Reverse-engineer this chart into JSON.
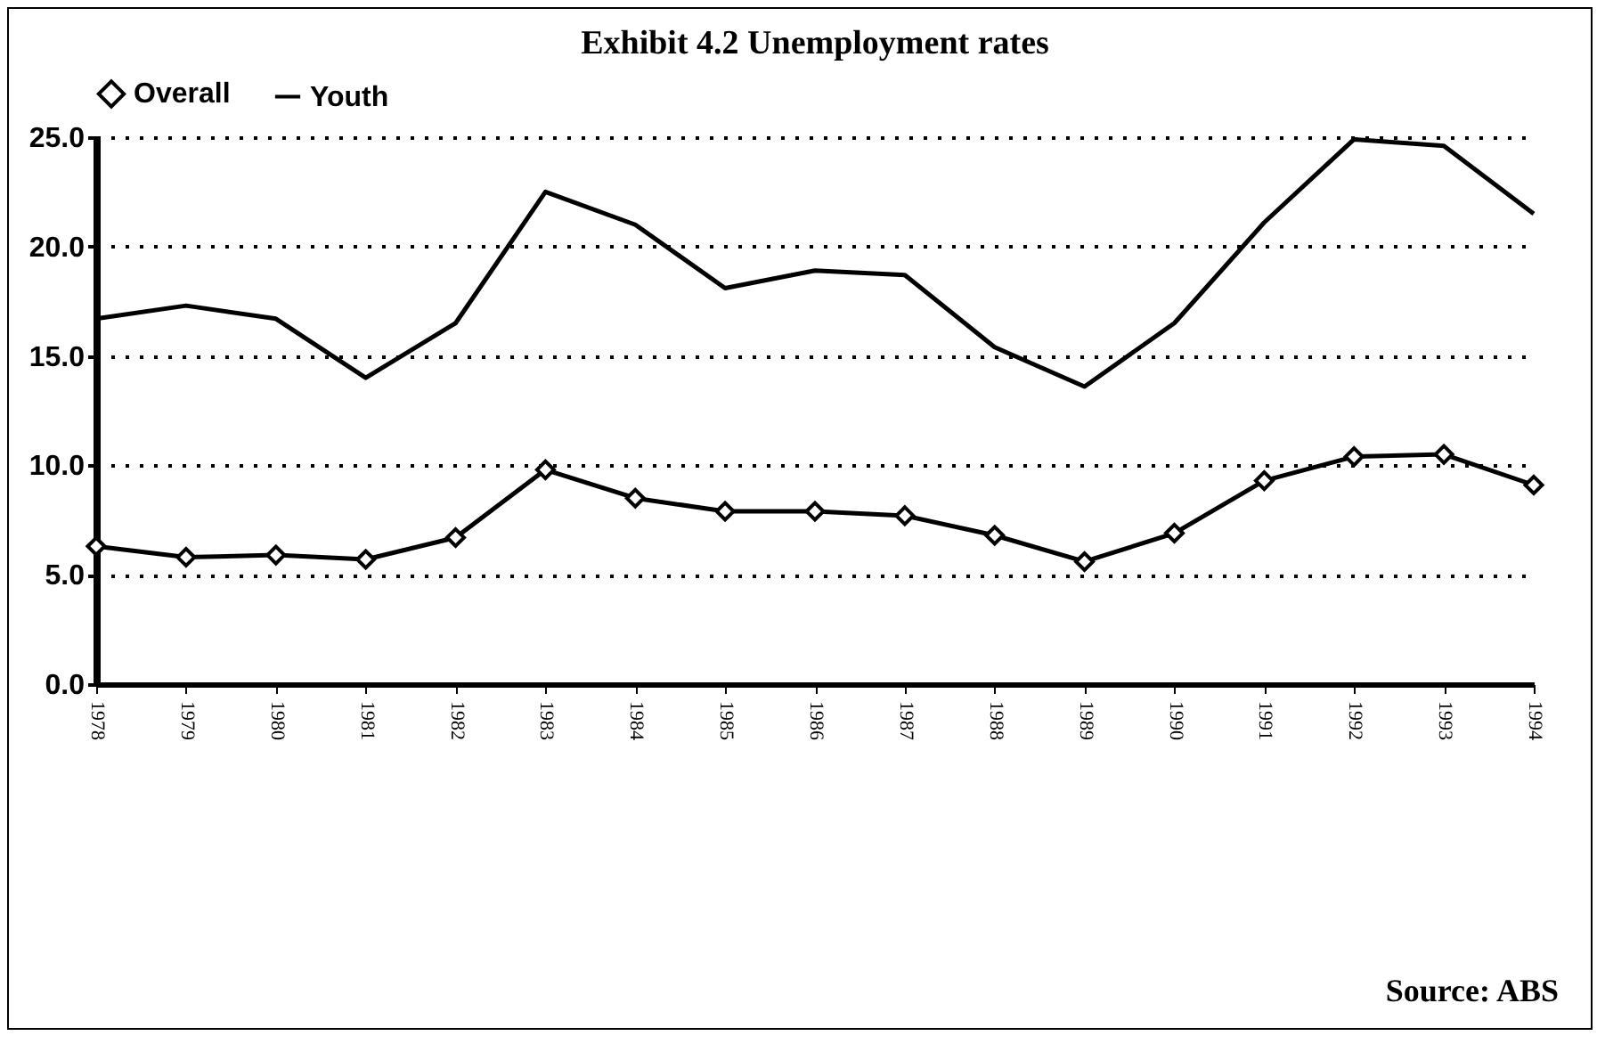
{
  "chart_data": {
    "type": "line",
    "title": "Exhibit 4.2 Unemployment rates",
    "categories": [
      "1978",
      "1979",
      "1980",
      "1981",
      "1982",
      "1983",
      "1984",
      "1985",
      "1986",
      "1987",
      "1988",
      "1989",
      "1990",
      "1991",
      "1992",
      "1993",
      "1994"
    ],
    "series": [
      {
        "name": "Overall",
        "color": "#000000",
        "marker": "diamond",
        "values": [
          6.3,
          5.8,
          5.9,
          5.7,
          6.7,
          9.8,
          8.5,
          7.9,
          7.9,
          7.7,
          6.8,
          5.6,
          6.9,
          9.3,
          10.4,
          10.5,
          9.1
        ]
      },
      {
        "name": "Youth",
        "color": "#000000",
        "marker": "none",
        "values": [
          16.7,
          17.3,
          16.7,
          14.0,
          16.5,
          22.5,
          21.0,
          18.1,
          18.9,
          18.7,
          15.4,
          13.6,
          16.5,
          21.1,
          24.9,
          24.6,
          21.5
        ]
      }
    ],
    "ylim": [
      0,
      25
    ],
    "yticks": [
      {
        "value": 0,
        "label": "0.0"
      },
      {
        "value": 5,
        "label": "5.0"
      },
      {
        "value": 10,
        "label": "10.0"
      },
      {
        "value": 15,
        "label": "15.0"
      },
      {
        "value": 20,
        "label": "20.0"
      },
      {
        "value": 25,
        "label": "25.0"
      }
    ],
    "grid": "y",
    "legend": "top",
    "line_style": "solid",
    "annotations": [
      "Source: ABS"
    ]
  }
}
